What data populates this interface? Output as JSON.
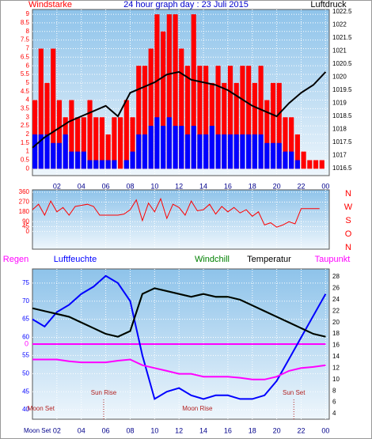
{
  "chart_data": [
    {
      "type": "bar",
      "title": "24 hour graph day : 23 Juli 2015",
      "ylabel": "Windstarke",
      "y2label": "Luftdruck",
      "x": [
        0,
        0.5,
        1,
        1.5,
        2,
        2.5,
        3,
        3.5,
        4,
        4.5,
        5,
        5.5,
        6,
        6.5,
        7,
        7.5,
        8,
        8.5,
        9,
        9.5,
        10,
        10.5,
        11,
        11.5,
        12,
        12.5,
        13,
        13.5,
        14,
        14.5,
        15,
        15.5,
        16,
        16.5,
        17,
        17.5,
        18,
        18.5,
        19,
        19.5,
        20,
        20.5,
        21,
        21.5,
        22,
        22.5,
        23,
        23.5
      ],
      "series": [
        {
          "type": "bar",
          "color": "#ff0000",
          "values": [
            4,
            7,
            5,
            7,
            4,
            3,
            4,
            3,
            3,
            4,
            3,
            3,
            2,
            3,
            3,
            4,
            3,
            6,
            6,
            7,
            9,
            8,
            9,
            9,
            7,
            6,
            9,
            6,
            6,
            5,
            6,
            5,
            6,
            5,
            6,
            6,
            5,
            6,
            4,
            5,
            5,
            3,
            3,
            2,
            1,
            0.5,
            0.5,
            0.5
          ]
        },
        {
          "type": "bar",
          "color": "#0000ff",
          "values": [
            2,
            2,
            2,
            1.5,
            1.5,
            2,
            1,
            1,
            1,
            0.5,
            0.5,
            0.5,
            0.5,
            0.5,
            0,
            0.5,
            1,
            2,
            2,
            2.5,
            3,
            2.5,
            3,
            2.5,
            2.5,
            2,
            2.5,
            2,
            2,
            2.5,
            2,
            2,
            2,
            2,
            2,
            2,
            2,
            2,
            1.5,
            1.5,
            1.5,
            1,
            1,
            0.5,
            0,
            0,
            0,
            0
          ]
        },
        {
          "type": "line",
          "axis": "y2",
          "color": "#000000",
          "x": [
            0,
            1,
            2,
            3,
            4,
            5,
            6,
            7,
            8,
            9,
            10,
            11,
            12,
            13,
            14,
            15,
            16,
            17,
            18,
            19,
            20,
            21,
            22,
            23,
            24
          ],
          "values": [
            1017.3,
            1017.7,
            1018,
            1018.3,
            1018.5,
            1018.7,
            1018.9,
            1018.5,
            1019.4,
            1019.6,
            1019.8,
            1020.1,
            1020.2,
            1019.9,
            1019.8,
            1019.7,
            1019.5,
            1019.2,
            1018.9,
            1018.7,
            1018.5,
            1019,
            1019.4,
            1019.7,
            1020.2
          ]
        }
      ],
      "xlim": [
        0,
        24.3
      ],
      "xticks": [
        {
          "value": 2,
          "label": "02"
        },
        {
          "value": 4,
          "label": "04"
        },
        {
          "value": 6,
          "label": "06"
        },
        {
          "value": 8,
          "label": "08"
        },
        10,
        12,
        14,
        16,
        18,
        20,
        22,
        {
          "value": 24,
          "label": "00"
        }
      ],
      "ylim": [
        -0.4,
        9.28
      ],
      "yticks": [
        0,
        0.5,
        1,
        1.5,
        2,
        2.5,
        3,
        3.5,
        4,
        4.5,
        5,
        5.5,
        6,
        6.5,
        7,
        7.5,
        8,
        8.5,
        9
      ],
      "y2lim": [
        1016.23,
        1022.59
      ],
      "y2ticks": [
        1016.5,
        1017,
        1017.5,
        1018,
        1018.5,
        1019,
        1019.5,
        1020,
        1020.5,
        1021,
        1021.5,
        1022,
        1022.5
      ],
      "grid": true
    },
    {
      "type": "line",
      "compass_labels": [
        "N",
        "W",
        "S",
        "O",
        "N"
      ],
      "x": [
        0,
        0.5,
        1,
        1.5,
        2,
        2.5,
        3,
        3.5,
        4,
        4.5,
        5,
        5.5,
        6,
        6.5,
        7,
        7.5,
        8,
        8.5,
        9,
        9.5,
        10,
        10.5,
        11,
        11.5,
        12,
        12.5,
        13,
        13.5,
        14,
        14.5,
        15,
        15.5,
        16,
        16.5,
        17,
        17.5,
        18,
        18.5,
        19,
        19.5,
        20,
        20.5,
        21,
        21.5,
        22,
        22.5,
        23,
        23.5
      ],
      "series": [
        {
          "color": "#ff0000",
          "values": [
            200,
            250,
            150,
            280,
            180,
            220,
            150,
            230,
            240,
            250,
            230,
            150,
            150,
            150,
            150,
            160,
            200,
            290,
            100,
            260,
            180,
            300,
            120,
            250,
            220,
            150,
            280,
            190,
            200,
            250,
            160,
            230,
            180,
            220,
            170,
            200,
            140,
            180,
            60,
            80,
            40,
            60,
            90,
            70,
            210,
            210,
            210,
            210
          ]
        }
      ],
      "xlim": [
        0,
        24.3
      ],
      "xticks": [
        2,
        4,
        6,
        8,
        10,
        12,
        14,
        16,
        18,
        20,
        22,
        24
      ],
      "ylim": [
        -162,
        382
      ],
      "yticks": [
        0,
        45,
        90,
        180,
        270,
        360
      ],
      "grid": true
    },
    {
      "type": "line",
      "x": [
        0,
        1,
        2,
        3,
        4,
        5,
        6,
        7,
        8,
        9,
        10,
        11,
        12,
        13,
        14,
        15,
        16,
        17,
        18,
        19,
        20,
        21,
        22,
        23,
        24
      ],
      "series": [
        {
          "name": "Regen",
          "color": "#ff00ff",
          "axis": "y3",
          "values": [
            0,
            0,
            0,
            0,
            0,
            0,
            0,
            0,
            0,
            0,
            0,
            0,
            0,
            0,
            0,
            0,
            0,
            0,
            0,
            0,
            0,
            0,
            0,
            0,
            0
          ]
        },
        {
          "name": "Luftfeuchte",
          "color": "#0000ff",
          "values": [
            65,
            63,
            67,
            69,
            72,
            74,
            77,
            75,
            70,
            55,
            43,
            45,
            46,
            44,
            43,
            44,
            44,
            43,
            43,
            44,
            48,
            54,
            60,
            66,
            72
          ]
        },
        {
          "name": "Windchill",
          "color": "#008000",
          "axis": "y2",
          "values": [
            22.5,
            22,
            21.5,
            21,
            20,
            19,
            18,
            17.5,
            18.5,
            25,
            26,
            25.5,
            25,
            24.5,
            25,
            24.5,
            24.5,
            24,
            23,
            22,
            21,
            20,
            19,
            18,
            17.5
          ]
        },
        {
          "name": "Temperatur",
          "color": "#000000",
          "axis": "y2",
          "values": [
            22.5,
            22,
            21.5,
            21,
            20,
            19,
            18,
            17.5,
            18.5,
            25,
            26,
            25.5,
            25,
            24.5,
            25,
            24.5,
            24.5,
            24,
            23,
            22,
            21,
            20,
            19,
            18,
            17.5
          ]
        },
        {
          "name": "Taupunkt",
          "color": "#ff00ff",
          "axis": "y2",
          "values": [
            13.5,
            13.5,
            13.5,
            13.2,
            13,
            13,
            13,
            13.3,
            13.5,
            12.5,
            12,
            11.5,
            11,
            11,
            10.5,
            10.5,
            10.5,
            10.3,
            10,
            10,
            10.5,
            11.5,
            12,
            12.2,
            12.5
          ]
        }
      ],
      "annotations": [
        {
          "text": "Moon Set",
          "x": 0.7
        },
        {
          "text": "Sun Rise",
          "x": 5.83
        },
        {
          "text": "Moon Rise",
          "x": 13.5
        },
        {
          "text": "Sun Set",
          "x": 21.4
        }
      ],
      "axis_prefix": "Moon Set",
      "xlim": [
        0,
        24.3
      ],
      "xticks": [
        {
          "value": 2,
          "label": "02"
        },
        {
          "value": 4,
          "label": "04"
        },
        {
          "value": 6,
          "label": "06"
        },
        {
          "value": 8,
          "label": "08"
        },
        10,
        12,
        14,
        16,
        18,
        20,
        22,
        {
          "value": 24,
          "label": "00"
        }
      ],
      "ylim": [
        37.4,
        78.9
      ],
      "yticks": [
        40,
        45,
        50,
        55,
        60,
        65,
        70,
        75
      ],
      "y2lim": [
        3.03,
        29.39
      ],
      "y2ticks": [
        4,
        6,
        8,
        10,
        12,
        14,
        16,
        18,
        20,
        22,
        24,
        26,
        28
      ],
      "y3lim": [
        -1.1,
        1.1
      ],
      "y3ticks": [
        0
      ],
      "grid": true
    }
  ]
}
